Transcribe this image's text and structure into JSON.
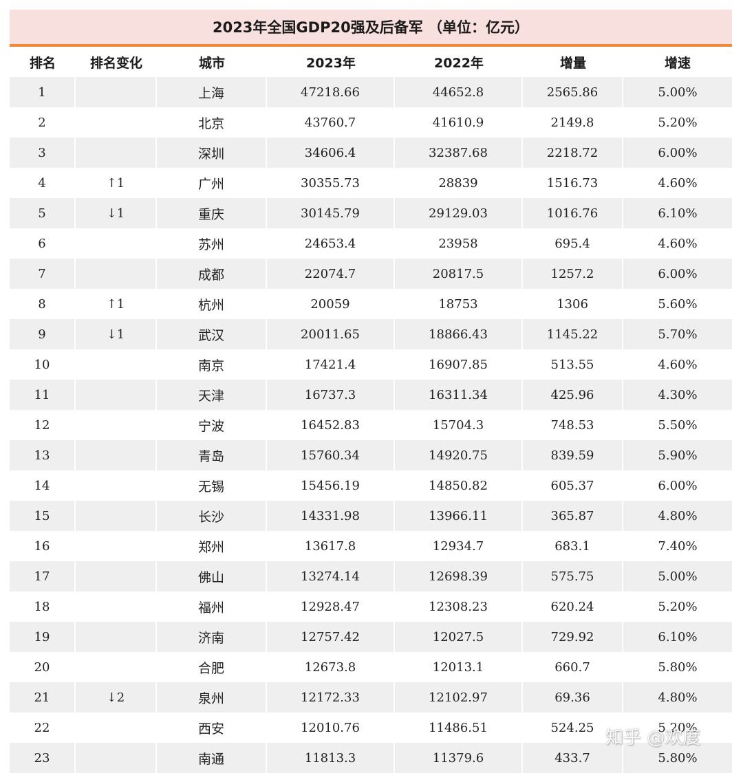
{
  "title": "2023年全国GDP20强及后备军 （单位：亿元）",
  "columns": [
    "排名",
    "排名变化",
    "城市",
    "2023年",
    "2022年",
    "增量",
    "增速"
  ],
  "rows": [
    {
      "rank": "1",
      "change": "",
      "city": "上海",
      "y2023": "47218.66",
      "y2022": "44652.8",
      "increase": "2565.86",
      "growth": "5.00%"
    },
    {
      "rank": "2",
      "change": "",
      "city": "北京",
      "y2023": "43760.7",
      "y2022": "41610.9",
      "increase": "2149.8",
      "growth": "5.20%"
    },
    {
      "rank": "3",
      "change": "",
      "city": "深圳",
      "y2023": "34606.4",
      "y2022": "32387.68",
      "increase": "2218.72",
      "growth": "6.00%"
    },
    {
      "rank": "4",
      "change": "↑1",
      "city": "广州",
      "y2023": "30355.73",
      "y2022": "28839",
      "increase": "1516.73",
      "growth": "4.60%"
    },
    {
      "rank": "5",
      "change": "↓1",
      "city": "重庆",
      "y2023": "30145.79",
      "y2022": "29129.03",
      "increase": "1016.76",
      "growth": "6.10%"
    },
    {
      "rank": "6",
      "change": "",
      "city": "苏州",
      "y2023": "24653.4",
      "y2022": "23958",
      "increase": "695.4",
      "growth": "4.60%"
    },
    {
      "rank": "7",
      "change": "",
      "city": "成都",
      "y2023": "22074.7",
      "y2022": "20817.5",
      "increase": "1257.2",
      "growth": "6.00%"
    },
    {
      "rank": "8",
      "change": "↑1",
      "city": "杭州",
      "y2023": "20059",
      "y2022": "18753",
      "increase": "1306",
      "growth": "5.60%"
    },
    {
      "rank": "9",
      "change": "↓1",
      "city": "武汉",
      "y2023": "20011.65",
      "y2022": "18866.43",
      "increase": "1145.22",
      "growth": "5.70%"
    },
    {
      "rank": "10",
      "change": "",
      "city": "南京",
      "y2023": "17421.4",
      "y2022": "16907.85",
      "increase": "513.55",
      "growth": "4.60%"
    },
    {
      "rank": "11",
      "change": "",
      "city": "天津",
      "y2023": "16737.3",
      "y2022": "16311.34",
      "increase": "425.96",
      "growth": "4.30%"
    },
    {
      "rank": "12",
      "change": "",
      "city": "宁波",
      "y2023": "16452.83",
      "y2022": "15704.3",
      "increase": "748.53",
      "growth": "5.50%"
    },
    {
      "rank": "13",
      "change": "",
      "city": "青岛",
      "y2023": "15760.34",
      "y2022": "14920.75",
      "increase": "839.59",
      "growth": "5.90%"
    },
    {
      "rank": "14",
      "change": "",
      "city": "无锡",
      "y2023": "15456.19",
      "y2022": "14850.82",
      "increase": "605.37",
      "growth": "6.00%"
    },
    {
      "rank": "15",
      "change": "",
      "city": "长沙",
      "y2023": "14331.98",
      "y2022": "13966.11",
      "increase": "365.87",
      "growth": "4.80%"
    },
    {
      "rank": "16",
      "change": "",
      "city": "郑州",
      "y2023": "13617.8",
      "y2022": "12934.7",
      "increase": "683.1",
      "growth": "7.40%"
    },
    {
      "rank": "17",
      "change": "",
      "city": "佛山",
      "y2023": "13274.14",
      "y2022": "12698.39",
      "increase": "575.75",
      "growth": "5.00%"
    },
    {
      "rank": "18",
      "change": "",
      "city": "福州",
      "y2023": "12928.47",
      "y2022": "12308.23",
      "increase": "620.24",
      "growth": "5.20%"
    },
    {
      "rank": "19",
      "change": "",
      "city": "济南",
      "y2023": "12757.42",
      "y2022": "12027.5",
      "increase": "729.92",
      "growth": "6.10%"
    },
    {
      "rank": "20",
      "change": "",
      "city": "合肥",
      "y2023": "12673.8",
      "y2022": "12013.1",
      "increase": "660.7",
      "growth": "5.80%"
    },
    {
      "rank": "21",
      "change": "↓2",
      "city": "泉州",
      "y2023": "12172.33",
      "y2022": "12102.97",
      "increase": "69.36",
      "growth": "4.80%"
    },
    {
      "rank": "22",
      "change": "",
      "city": "西安",
      "y2023": "12010.76",
      "y2022": "11486.51",
      "increase": "524.25",
      "growth": "5.20%"
    },
    {
      "rank": "23",
      "change": "",
      "city": "南通",
      "y2023": "11813.3",
      "y2022": "11379.6",
      "increase": "433.7",
      "growth": "5.80%"
    }
  ],
  "watermark": "知乎 @欢度",
  "colors": {
    "title_bg": "#f8e0df",
    "accent_rule": "#ee8a3a",
    "stripe": "#efefef"
  }
}
